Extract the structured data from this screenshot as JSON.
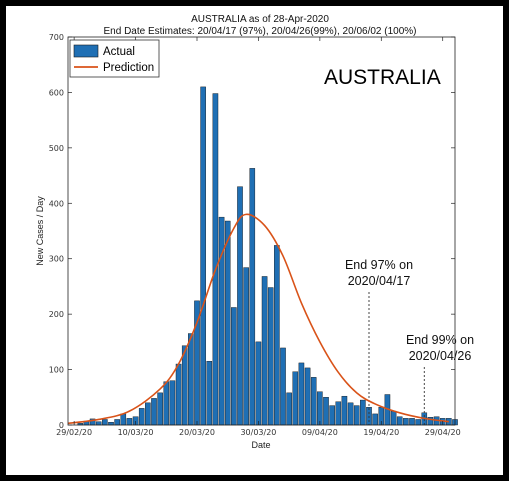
{
  "chart_data": {
    "type": "bar",
    "title": "AUSTRALIA as of 28-Apr-2020",
    "subtitle": "End Date Estimates: 20/04/17 (97%), 20/04/26(99%), 20/06/02 (100%)",
    "overlay_label": "AUSTRALIA",
    "xlabel": "Date",
    "ylabel": "New Cases / Day",
    "ylim": [
      0,
      700
    ],
    "y_ticks": [
      "0",
      "100",
      "200",
      "300",
      "400",
      "500",
      "600",
      "700"
    ],
    "x_tick_labels": [
      "29/02/20",
      "10/03/20",
      "20/03/20",
      "30/03/20",
      "09/04/20",
      "19/04/20",
      "29/04/20"
    ],
    "legend_position": "top-left",
    "grid": false,
    "series": [
      {
        "name": "Actual",
        "kind": "bar",
        "color": "#1f6fb4",
        "start_date": "2020-03-01",
        "values": [
          3,
          7,
          11,
          6,
          10,
          5,
          10,
          20,
          12,
          15,
          30,
          40,
          48,
          58,
          78,
          80,
          110,
          143,
          165,
          224,
          610,
          115,
          598,
          375,
          368,
          212,
          430,
          284,
          463,
          150,
          268,
          248,
          324,
          139,
          58,
          96,
          112,
          103,
          86,
          60,
          50,
          35,
          42,
          52,
          40,
          35,
          45,
          32,
          20,
          32,
          55,
          25,
          15,
          12,
          12,
          10,
          22,
          14,
          15,
          12,
          12,
          10
        ]
      },
      {
        "name": "Prediction",
        "kind": "line",
        "color": "#d95319",
        "start_date": "2020-02-28",
        "peak_date": "2020-03-28",
        "peak_value": 380,
        "curve_points": [
          [
            "2020-02-28",
            3
          ],
          [
            "2020-03-04",
            10
          ],
          [
            "2020-03-09",
            25
          ],
          [
            "2020-03-14",
            65
          ],
          [
            "2020-03-17",
            110
          ],
          [
            "2020-03-20",
            185
          ],
          [
            "2020-03-23",
            280
          ],
          [
            "2020-03-26",
            355
          ],
          [
            "2020-03-28",
            380
          ],
          [
            "2020-03-31",
            360
          ],
          [
            "2020-04-03",
            305
          ],
          [
            "2020-04-06",
            220
          ],
          [
            "2020-04-09",
            150
          ],
          [
            "2020-04-12",
            95
          ],
          [
            "2020-04-15",
            58
          ],
          [
            "2020-04-18",
            38
          ],
          [
            "2020-04-22",
            22
          ],
          [
            "2020-04-26",
            12
          ],
          [
            "2020-04-30",
            6
          ]
        ]
      }
    ],
    "annotations": [
      {
        "lines": [
          "End 97% on",
          "2020/04/17"
        ],
        "date": "2020-04-17"
      },
      {
        "lines": [
          "End 99% on",
          "2020/04/26"
        ],
        "date": "2020-04-26"
      }
    ]
  }
}
